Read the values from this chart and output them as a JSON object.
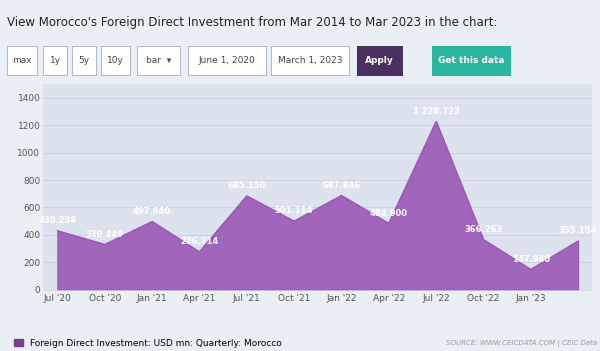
{
  "title": "View Morocco's Foreign Direct Investment from Mar 2014 to Mar 2023 in the chart:",
  "values": [
    430.238,
    330.449,
    497.94,
    276.714,
    685.15,
    501.114,
    687.846,
    484.9,
    1228.723,
    366.263,
    147.94,
    355.154
  ],
  "x_tick_labels": [
    "Jul '20",
    "Oct '20",
    "Jan '21",
    "Apr '21",
    "Jul '21",
    "Oct '21",
    "Jan '22",
    "Apr '22",
    "Jul '22",
    "Oct '22",
    "Jan '23"
  ],
  "annotations": [
    "430.238",
    "330.449",
    "497.940",
    "276.714",
    "685.150",
    "501.114",
    "687.846",
    "484.900",
    "1 228.723",
    "366.263",
    "147.940",
    "355.154"
  ],
  "area_color": "#9b59b6",
  "bg_color": "#eaeff5",
  "plot_bg_color": "#dde3ee",
  "legend_label": "Foreign Direct Investment: USD mn: Quarterly: Morocco",
  "legend_color": "#7b3f8c",
  "source_text": "SOURCE: WWW.CEICDATA.COM | CEIC Data",
  "ylim": [
    0,
    1500
  ],
  "yticks": [
    0,
    200,
    400,
    600,
    800,
    1000,
    1200,
    1400
  ],
  "annotation_color": "#ffffff",
  "annotation_fontsize": 6.0,
  "grid_color": "#c8cedc",
  "apply_button_color": "#4a3060",
  "getdata_button_color": "#2ab5a0",
  "btn_labels": [
    "max",
    "1y",
    "5y",
    "10y"
  ],
  "date1": "June 1, 2020",
  "date2": "March 1, 2023"
}
